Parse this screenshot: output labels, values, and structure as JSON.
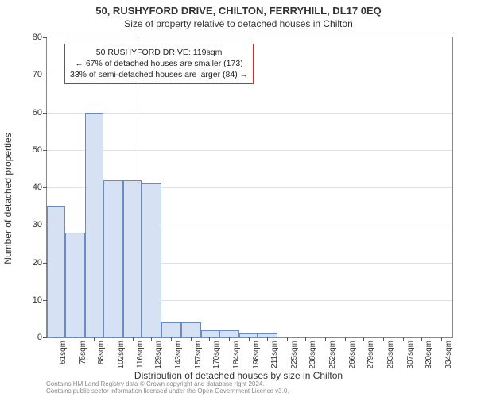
{
  "title": "50, RUSHYFORD DRIVE, CHILTON, FERRYHILL, DL17 0EQ",
  "subtitle": "Size of property relative to detached houses in Chilton",
  "ylabel": "Number of detached properties",
  "xlabel": "Distribution of detached houses by size in Chilton",
  "chart": {
    "type": "histogram",
    "ylim": [
      0,
      80
    ],
    "ytick_step": 10,
    "yticks": [
      0,
      10,
      20,
      30,
      40,
      50,
      60,
      70,
      80
    ],
    "xlim": [
      55,
      342
    ],
    "xticks": [
      61,
      75,
      88,
      102,
      116,
      129,
      143,
      157,
      170,
      184,
      198,
      211,
      225,
      238,
      252,
      266,
      279,
      293,
      307,
      320,
      334
    ],
    "xtick_unit": "sqm",
    "bar_color": "#d6e1f4",
    "bar_border": "#6b8bc4",
    "background_color": "#ffffff",
    "grid_color": "#e0e0e0",
    "axis_color": "#888888",
    "bars": [
      {
        "x0": 55,
        "x1": 68,
        "count": 35
      },
      {
        "x0": 68,
        "x1": 82,
        "count": 28
      },
      {
        "x0": 82,
        "x1": 95,
        "count": 60
      },
      {
        "x0": 95,
        "x1": 109,
        "count": 42
      },
      {
        "x0": 109,
        "x1": 122,
        "count": 42
      },
      {
        "x0": 122,
        "x1": 136,
        "count": 41
      },
      {
        "x0": 136,
        "x1": 150,
        "count": 4
      },
      {
        "x0": 150,
        "x1": 164,
        "count": 4
      },
      {
        "x0": 164,
        "x1": 177,
        "count": 2
      },
      {
        "x0": 177,
        "x1": 191,
        "count": 2
      },
      {
        "x0": 191,
        "x1": 204,
        "count": 1
      },
      {
        "x0": 204,
        "x1": 218,
        "count": 1
      }
    ],
    "reference_line": {
      "x": 119,
      "color": "#d62728"
    },
    "info_box": {
      "border_color": "#d62728",
      "lines": [
        "50 RUSHYFORD DRIVE: 119sqm",
        "← 67% of detached houses are smaller (173)",
        "33% of semi-detached houses are larger (84) →"
      ]
    }
  },
  "license": {
    "line1": "Contains HM Land Registry data © Crown copyright and database right 2024.",
    "line2": "Contains public sector information licensed under the Open Government Licence v3.0."
  }
}
